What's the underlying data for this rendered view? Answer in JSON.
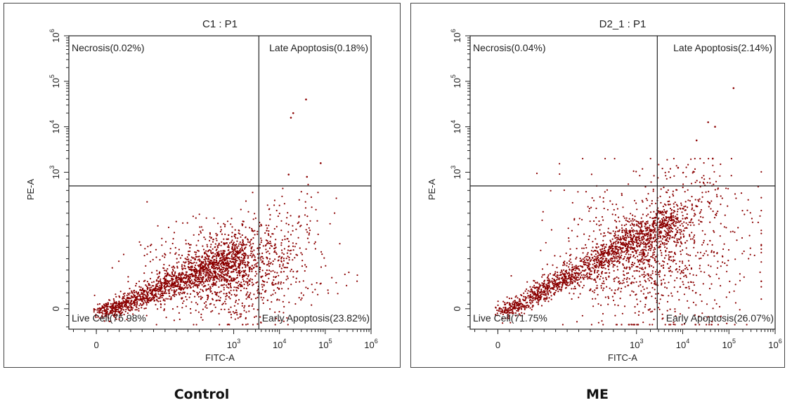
{
  "chart_data": [
    {
      "type": "scatter",
      "title": "C1 : P1",
      "caption": "Control",
      "xlabel": "FITC-A",
      "ylabel": "PE-A",
      "x_ticks": [
        {
          "value": 0,
          "base": "0",
          "exp": ""
        },
        {
          "value": 3,
          "base": "10",
          "exp": "3"
        },
        {
          "value": 4,
          "base": "10",
          "exp": "4"
        },
        {
          "value": 5,
          "base": "10",
          "exp": "5"
        },
        {
          "value": 6,
          "base": "10",
          "exp": "6"
        }
      ],
      "y_ticks": [
        {
          "value": 0,
          "base": "0",
          "exp": ""
        },
        {
          "value": 3,
          "base": "10",
          "exp": "3"
        },
        {
          "value": 4,
          "base": "10",
          "exp": "4"
        },
        {
          "value": 5,
          "base": "10",
          "exp": "5"
        },
        {
          "value": 6,
          "base": "10",
          "exp": "6"
        }
      ],
      "x_scale": "biexponential",
      "y_scale": "biexponential",
      "xlim": [
        -0.6,
        6
      ],
      "ylim": [
        -0.45,
        6
      ],
      "quadrant_gate": {
        "x": 3.55,
        "y": 2.7
      },
      "quadrants": [
        {
          "name": "Necrosis",
          "percent": 0.02,
          "label": "Necrosis(0.02%)",
          "position": "top-left"
        },
        {
          "name": "Late Apoptosis",
          "percent": 0.18,
          "label": "Late Apoptosis(0.18%)",
          "position": "top-right"
        },
        {
          "name": "Live Cell",
          "percent": 75.98,
          "label": "Live Cell(75.98%",
          "position": "bottom-left"
        },
        {
          "name": "Early Apoptosis",
          "percent": 23.82,
          "label": "Early Apoptosis(23.82%)",
          "position": "bottom-right"
        }
      ],
      "population": {
        "center": {
          "x": 2.3,
          "y": 0.5
        },
        "spread": {
          "x": 1.6,
          "y": 0.9
        },
        "tail_to": {
          "x": 4.6,
          "y": 2.1
        }
      },
      "outliers": [
        {
          "x": 4.58,
          "y": 4.6
        },
        {
          "x": 4.3,
          "y": 4.3
        },
        {
          "x": 4.25,
          "y": 4.2
        },
        {
          "x": 4.9,
          "y": 3.2
        },
        {
          "x": 4.6,
          "y": 2.9
        },
        {
          "x": 4.2,
          "y": 2.95
        }
      ],
      "color": "#8b0000"
    },
    {
      "type": "scatter",
      "title": "D2_1 : P1",
      "caption": "ME",
      "xlabel": "FITC-A",
      "ylabel": "PE-A",
      "x_ticks": [
        {
          "value": 0,
          "base": "0",
          "exp": ""
        },
        {
          "value": 3,
          "base": "10",
          "exp": "3"
        },
        {
          "value": 4,
          "base": "10",
          "exp": "4"
        },
        {
          "value": 5,
          "base": "10",
          "exp": "5"
        },
        {
          "value": 6,
          "base": "10",
          "exp": "6"
        }
      ],
      "y_ticks": [
        {
          "value": 0,
          "base": "0",
          "exp": ""
        },
        {
          "value": 3,
          "base": "10",
          "exp": "3"
        },
        {
          "value": 4,
          "base": "10",
          "exp": "4"
        },
        {
          "value": 5,
          "base": "10",
          "exp": "5"
        },
        {
          "value": 6,
          "base": "10",
          "exp": "6"
        }
      ],
      "x_scale": "biexponential",
      "y_scale": "biexponential",
      "xlim": [
        -0.6,
        6
      ],
      "ylim": [
        -0.45,
        6
      ],
      "quadrant_gate": {
        "x": 3.45,
        "y": 2.7
      },
      "quadrants": [
        {
          "name": "Necrosis",
          "percent": 0.04,
          "label": "Necrosis(0.04%)",
          "position": "top-left"
        },
        {
          "name": "Late Apoptosis",
          "percent": 2.14,
          "label": "Late Apoptosis(2.14%)",
          "position": "top-right"
        },
        {
          "name": "Live Cell",
          "percent": 71.75,
          "label": "Live Cell(71.75%",
          "position": "bottom-left"
        },
        {
          "name": "Early Apoptosis",
          "percent": 26.07,
          "label": "Early Apoptosis(26.07%)",
          "position": "bottom-right"
        }
      ],
      "population": {
        "center": {
          "x": 2.8,
          "y": 0.9
        },
        "spread": {
          "x": 1.9,
          "y": 1.4
        },
        "tail_to": {
          "x": 4.7,
          "y": 2.9
        }
      },
      "outliers": [
        {
          "x": 5.1,
          "y": 4.85
        },
        {
          "x": 4.7,
          "y": 4.0
        },
        {
          "x": 4.55,
          "y": 4.1
        },
        {
          "x": 4.3,
          "y": 3.7
        },
        {
          "x": 4.65,
          "y": 3.3
        },
        {
          "x": 3.9,
          "y": 3.1
        }
      ],
      "color": "#8b0000"
    }
  ]
}
